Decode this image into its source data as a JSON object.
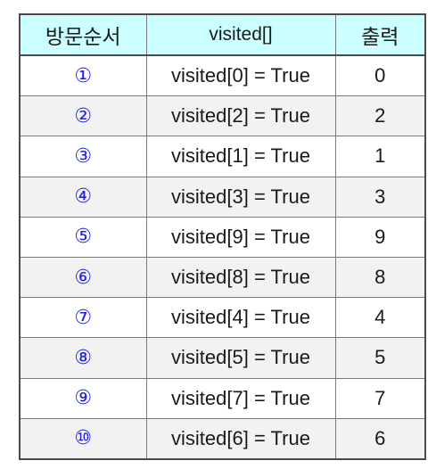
{
  "table": {
    "headers": [
      "방문순서",
      "visited[]",
      "출력"
    ],
    "rows": [
      {
        "order": "①",
        "visited": "visited[0] = True",
        "output": "0"
      },
      {
        "order": "②",
        "visited": "visited[2] = True",
        "output": "2"
      },
      {
        "order": "③",
        "visited": "visited[1] = True",
        "output": "1"
      },
      {
        "order": "④",
        "visited": "visited[3] = True",
        "output": "3"
      },
      {
        "order": "⑤",
        "visited": "visited[9] = True",
        "output": "9"
      },
      {
        "order": "⑥",
        "visited": "visited[8] = True",
        "output": "8"
      },
      {
        "order": "⑦",
        "visited": "visited[4] = True",
        "output": "4"
      },
      {
        "order": "⑧",
        "visited": "visited[5] = True",
        "output": "5"
      },
      {
        "order": "⑨",
        "visited": "visited[7] = True",
        "output": "7"
      },
      {
        "order": "⑩",
        "visited": "visited[6] = True",
        "output": "6"
      }
    ]
  },
  "colors": {
    "header_background": "#ccffff",
    "order_number": "#2020e0",
    "alternate_row": "#f2f2f2",
    "border": "#4a4a4a"
  }
}
